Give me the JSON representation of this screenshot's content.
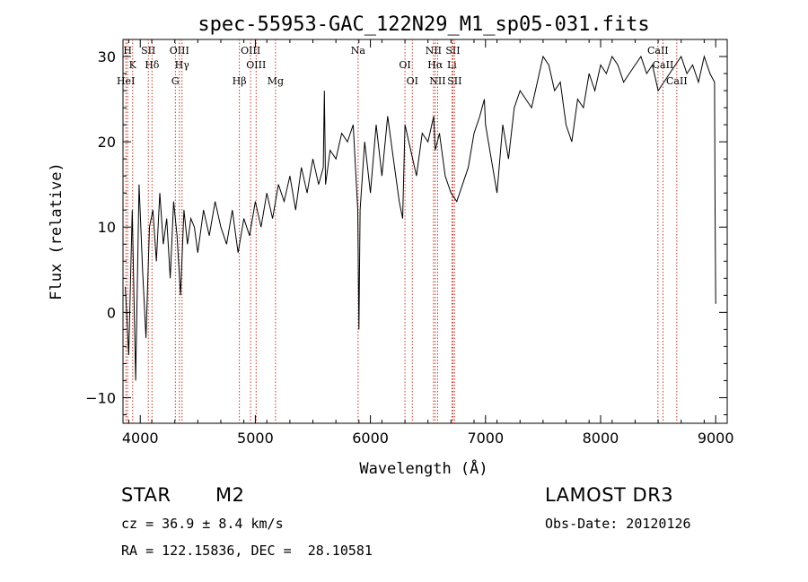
{
  "chart_data": {
    "type": "line",
    "title": "spec-55953-GAC_122N29_M1_sp05-031.fits",
    "xlabel": "Wavelength (Å)",
    "ylabel": "Flux (relative)",
    "xlim": [
      3850,
      9100
    ],
    "ylim": [
      -13,
      32
    ],
    "xticks": [
      4000,
      5000,
      6000,
      7000,
      8000,
      9000
    ],
    "yticks": [
      -10,
      0,
      10,
      20,
      30
    ],
    "series": [
      {
        "name": "flux",
        "x": [
          3870,
          3900,
          3930,
          3960,
          3990,
          4020,
          4050,
          4080,
          4110,
          4140,
          4170,
          4200,
          4230,
          4260,
          4290,
          4320,
          4350,
          4380,
          4410,
          4440,
          4470,
          4500,
          4550,
          4600,
          4650,
          4700,
          4750,
          4800,
          4850,
          4900,
          4950,
          5000,
          5050,
          5100,
          5150,
          5200,
          5250,
          5300,
          5350,
          5400,
          5450,
          5500,
          5550,
          5590,
          5600,
          5610,
          5650,
          5700,
          5750,
          5800,
          5850,
          5890,
          5900,
          5910,
          5950,
          6000,
          6050,
          6100,
          6150,
          6200,
          6250,
          6280,
          6300,
          6350,
          6400,
          6450,
          6500,
          6550,
          6563,
          6600,
          6650,
          6700,
          6750,
          6800,
          6850,
          6900,
          6950,
          6990,
          7000,
          7050,
          7100,
          7150,
          7200,
          7250,
          7300,
          7350,
          7400,
          7450,
          7500,
          7550,
          7600,
          7650,
          7700,
          7750,
          7800,
          7850,
          7900,
          7950,
          8000,
          8050,
          8100,
          8150,
          8200,
          8250,
          8300,
          8350,
          8400,
          8450,
          8500,
          8550,
          8600,
          8650,
          8700,
          8750,
          8800,
          8850,
          8900,
          8950,
          8990,
          8995,
          9000
        ],
        "y": [
          3,
          -5,
          12,
          -8,
          15,
          5,
          -3,
          10,
          12,
          6,
          14,
          8,
          11,
          4,
          13,
          9,
          2,
          12,
          8,
          11,
          10,
          7,
          12,
          9,
          13,
          10,
          8,
          12,
          7,
          11,
          9,
          13,
          10,
          14,
          11,
          15,
          13,
          16,
          12,
          17,
          14,
          18,
          15,
          17,
          26,
          15,
          19,
          18,
          21,
          20,
          22,
          12,
          -2,
          12,
          20,
          14,
          22,
          16,
          23,
          18,
          13,
          11,
          22,
          19,
          16,
          21,
          20,
          23,
          19,
          21,
          16,
          14,
          13,
          15,
          17,
          21,
          23,
          25,
          22,
          18,
          14,
          22,
          18,
          24,
          26,
          25,
          24,
          27,
          30,
          29,
          26,
          27,
          22,
          20,
          25,
          24,
          28,
          26,
          29,
          28,
          30,
          29,
          27,
          28,
          29,
          30,
          28,
          29,
          26,
          27,
          28,
          29,
          30,
          28,
          29,
          27,
          30,
          28,
          27,
          12,
          1
        ]
      }
    ],
    "lines": [
      {
        "label": "H",
        "x": 3890
      },
      {
        "label": "K",
        "x": 3934
      },
      {
        "label": "HeI",
        "x": 3875
      },
      {
        "label": "SII",
        "x": 4070
      },
      {
        "label": "Hδ",
        "x": 4102
      },
      {
        "label": "G",
        "x": 4305
      },
      {
        "label": "OIII",
        "x": 4340
      },
      {
        "label": "Hγ",
        "x": 4363
      },
      {
        "label": "Hβ",
        "x": 4861
      },
      {
        "label": "OIII",
        "x": 4959
      },
      {
        "label": "OIII",
        "x": 5007
      },
      {
        "label": "Mg",
        "x": 5175
      },
      {
        "label": "Na",
        "x": 5893
      },
      {
        "label": "OI",
        "x": 6300
      },
      {
        "label": "OI",
        "x": 6364
      },
      {
        "label": "NII",
        "x": 6548
      },
      {
        "label": "Hα",
        "x": 6563
      },
      {
        "label": "NII",
        "x": 6584
      },
      {
        "label": "SII",
        "x": 6717
      },
      {
        "label": "Li",
        "x": 6708
      },
      {
        "label": "SII",
        "x": 6731
      },
      {
        "label": "CaII",
        "x": 8498
      },
      {
        "label": "CaII",
        "x": 8542
      },
      {
        "label": "CaII",
        "x": 8662
      }
    ]
  },
  "info": {
    "class": "STAR",
    "subclass": "M2",
    "survey": "LAMOST DR3",
    "cz": "cz = 36.9 ± 8.4 km/s",
    "obs_date": "Obs-Date: 20120126",
    "coords": "RA = 122.15836, DEC =  28.10581"
  }
}
